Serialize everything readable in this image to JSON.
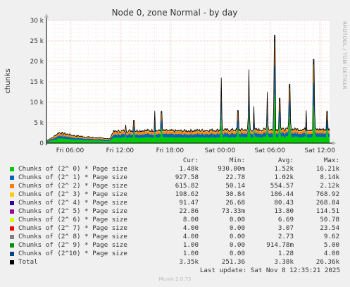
{
  "title": "Node 0, zone Normal - by day",
  "ylabel": "chunks",
  "side_label": "RRDTOOL / TOBI OETIKER",
  "legend_headers": {
    "cur": "Cur:",
    "min": "Min:",
    "avg": "Avg:",
    "max": "Max:"
  },
  "legend": [
    {
      "name": "Chunks of (2^ 0) * Page size",
      "color": "#00cc00",
      "cur": "1.48k",
      "min": "930.00m",
      "avg": "1.52k",
      "max": "16.21k"
    },
    {
      "name": "Chunks of (2^ 1) * Page size",
      "color": "#0066b3",
      "cur": "927.58",
      "min": "22.78",
      "avg": "1.02k",
      "max": "8.14k"
    },
    {
      "name": "Chunks of (2^ 2) * Page size",
      "color": "#ff8000",
      "cur": "615.82",
      "min": "50.14",
      "avg": "554.57",
      "max": "2.12k"
    },
    {
      "name": "Chunks of (2^ 3) * Page size",
      "color": "#ffcc00",
      "cur": "198.62",
      "min": "30.84",
      "avg": "186.44",
      "max": "768.92"
    },
    {
      "name": "Chunks of (2^ 4) * Page size",
      "color": "#330099",
      "cur": "91.47",
      "min": "26.68",
      "avg": "80.43",
      "max": "268.84"
    },
    {
      "name": "Chunks of (2^ 5) * Page size",
      "color": "#990099",
      "cur": "22.86",
      "min": "73.33m",
      "avg": "13.80",
      "max": "114.51"
    },
    {
      "name": "Chunks of (2^ 6) * Page size",
      "color": "#ccff00",
      "cur": "8.00",
      "min": "0.00",
      "avg": "6.69",
      "max": "50.78"
    },
    {
      "name": "Chunks of (2^ 7) * Page size",
      "color": "#ff0000",
      "cur": "4.00",
      "min": "0.00",
      "avg": "3.07",
      "max": "23.54"
    },
    {
      "name": "Chunks of (2^ 8) * Page size",
      "color": "#808080",
      "cur": "4.00",
      "min": "0.00",
      "avg": "2.73",
      "max": "9.62"
    },
    {
      "name": "Chunks of (2^ 9) * Page size",
      "color": "#008f00",
      "cur": "1.00",
      "min": "0.00",
      "avg": "914.78m",
      "max": "5.00"
    },
    {
      "name": "Chunks of (2^10) * Page size",
      "color": "#00487d",
      "cur": "1.00",
      "min": "0.00",
      "avg": "1.28",
      "max": "4.00"
    },
    {
      "name": "Total",
      "color": "#000000",
      "cur": "3.35k",
      "min": "251.36",
      "avg": "3.38k",
      "max": "26.36k"
    }
  ],
  "last_update": "Last update: Sat Nov  8 12:35:21 2025",
  "munin_version": "Munin 2.0.73",
  "colors": {
    "background": "#f0f0f0",
    "plot_background": "#ffffff",
    "grid_major": "#e0a0a0",
    "grid_minor": "#f0d0d0",
    "total_line": "#000000"
  },
  "chart_data": {
    "type": "area",
    "stacked": true,
    "title": "Node 0, zone Normal - by day",
    "ylabel": "chunks",
    "ylim": [
      0,
      30000
    ],
    "y_ticks": [
      {
        "value": 0,
        "label": "0"
      },
      {
        "value": 5000,
        "label": "5 k"
      },
      {
        "value": 10000,
        "label": "10 k"
      },
      {
        "value": 15000,
        "label": "15 k"
      },
      {
        "value": 20000,
        "label": "20 k"
      },
      {
        "value": 25000,
        "label": "25 k"
      },
      {
        "value": 30000,
        "label": "30 k"
      }
    ],
    "x_range": [
      "Fri 03:10",
      "Sat 13:10"
    ],
    "x_ticks": [
      "Fri 06:00",
      "Fri 12:00",
      "Fri 18:00",
      "Sat 00:00",
      "Sat 06:00",
      "Sat 12:00"
    ],
    "x_tick_hours": [
      2.83,
      8.83,
      14.83,
      20.83,
      26.83,
      32.83
    ],
    "x_hours_total": 34,
    "grid": true,
    "baseline_segments": [
      {
        "x_hours": 0.0,
        "total": 600
      },
      {
        "x_hours": 0.8,
        "total": 1500
      },
      {
        "x_hours": 1.5,
        "total": 2600
      },
      {
        "x_hours": 2.5,
        "total": 2200
      },
      {
        "x_hours": 3.5,
        "total": 1800
      },
      {
        "x_hours": 5.0,
        "total": 1500
      },
      {
        "x_hours": 7.0,
        "total": 1200
      },
      {
        "x_hours": 7.6,
        "total": 1000
      },
      {
        "x_hours": 8.0,
        "total": 2800
      },
      {
        "x_hours": 9.0,
        "total": 3000
      },
      {
        "x_hours": 12.0,
        "total": 3100
      },
      {
        "x_hours": 16.0,
        "total": 3000
      },
      {
        "x_hours": 20.0,
        "total": 3200
      },
      {
        "x_hours": 25.0,
        "total": 3300
      },
      {
        "x_hours": 30.0,
        "total": 3400
      },
      {
        "x_hours": 34.0,
        "total": 3350
      }
    ],
    "spikes": [
      {
        "x_hours": 9.5,
        "total": 4500
      },
      {
        "x_hours": 10.5,
        "total": 5600
      },
      {
        "x_hours": 13.0,
        "total": 7900
      },
      {
        "x_hours": 13.8,
        "total": 7800
      },
      {
        "x_hours": 21.0,
        "total": 16000
      },
      {
        "x_hours": 23.0,
        "total": 8000
      },
      {
        "x_hours": 24.3,
        "total": 18000
      },
      {
        "x_hours": 24.9,
        "total": 9000
      },
      {
        "x_hours": 26.5,
        "total": 12500
      },
      {
        "x_hours": 27.4,
        "total": 26360
      },
      {
        "x_hours": 28.0,
        "total": 11000
      },
      {
        "x_hours": 29.2,
        "total": 14400
      },
      {
        "x_hours": 31.2,
        "total": 8000
      },
      {
        "x_hours": 32.1,
        "total": 20500
      },
      {
        "x_hours": 33.7,
        "total": 7800
      }
    ],
    "series_fraction": [
      0.45,
      0.27,
      0.16,
      0.06,
      0.03,
      0.01,
      0.01,
      0.01
    ]
  }
}
